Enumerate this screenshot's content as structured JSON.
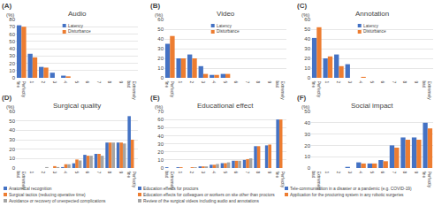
{
  "chart_data": [
    {
      "type": "bar",
      "title": "Audio",
      "annotations": [
        "(A)"
      ],
      "ylabel": "(%)",
      "categories": [
        "Perfectly\nfine",
        "1",
        "2",
        "3",
        "4",
        "5",
        "6",
        "7",
        "8",
        "9",
        "Extremely\nbad"
      ],
      "series": [
        {
          "name": "Latency",
          "color": "#4472c4",
          "values": [
            72,
            33,
            15,
            7,
            3,
            0,
            0,
            0,
            0,
            0,
            0
          ]
        },
        {
          "name": "Disturbance",
          "color": "#ed7d31",
          "values": [
            70,
            28,
            14,
            0,
            2,
            0,
            0,
            0,
            0,
            0,
            0
          ]
        }
      ],
      "ylim": [
        0,
        80
      ],
      "yticks": [
        0,
        10,
        20,
        30,
        40,
        50,
        60,
        70,
        80
      ],
      "grid": true,
      "legend": "upper center"
    },
    {
      "type": "bar",
      "title": "Video",
      "annotations": [
        "(B)"
      ],
      "ylabel": "(%)",
      "categories": [
        "Perfectly\nfine",
        "1",
        "2",
        "3",
        "4",
        "5",
        "6",
        "7",
        "8",
        "9",
        "Extremely\nbad"
      ],
      "series": [
        {
          "name": "Latency",
          "color": "#4472c4",
          "values": [
            35,
            20,
            24,
            12,
            3,
            4,
            0,
            0,
            0,
            0,
            0
          ]
        },
        {
          "name": "Disturbance",
          "color": "#ed7d31",
          "values": [
            43,
            20,
            20,
            4,
            3,
            4,
            0,
            0,
            0,
            0,
            0
          ]
        }
      ],
      "ylim": [
        0,
        60
      ],
      "yticks": [
        0,
        10,
        20,
        30,
        40,
        50,
        60
      ],
      "grid": true,
      "legend": "upper center"
    },
    {
      "type": "bar",
      "title": "Annotation",
      "annotations": [
        "(C)"
      ],
      "ylabel": "(%)",
      "categories": [
        "Perfectly\nfine",
        "1",
        "2",
        "3",
        "4",
        "5",
        "6",
        "7",
        "8",
        "9",
        "Extremely\nbad"
      ],
      "series": [
        {
          "name": "Latency",
          "color": "#4472c4",
          "values": [
            41,
            20,
            24,
            14,
            0,
            0,
            0,
            0,
            0,
            0,
            0
          ]
        },
        {
          "name": "Disturbance",
          "color": "#ed7d31",
          "values": [
            52,
            22,
            12,
            0,
            1,
            0,
            0,
            0,
            0,
            0,
            0
          ]
        }
      ],
      "ylim": [
        0,
        60
      ],
      "yticks": [
        0,
        10,
        20,
        30,
        40,
        50,
        60
      ],
      "grid": true,
      "legend": "upper center"
    },
    {
      "type": "bar",
      "title": "Surgical quality",
      "annotations": [
        "(D)"
      ],
      "ylabel": "(%)",
      "categories": [
        "Extremely\nbad",
        "1",
        "2",
        "3",
        "4",
        "5",
        "6",
        "7",
        "8",
        "9",
        "Perfectly\nfine"
      ],
      "series": [
        {
          "name": "Anatomical recognition",
          "color": "#4472c4",
          "values": [
            0,
            0,
            0,
            0,
            1,
            5,
            14,
            15,
            27,
            27,
            55
          ]
        },
        {
          "name": "Surgical tactics (reducing operative time)",
          "color": "#ed7d31",
          "values": [
            0,
            0,
            0,
            2,
            4,
            9,
            13,
            15,
            27,
            27,
            30
          ]
        },
        {
          "name": "Avoidance or recovery of unexpected complications",
          "color": "#a5a5a5",
          "values": [
            0,
            0,
            1,
            1,
            4,
            8,
            13,
            13,
            27,
            26,
            0
          ]
        }
      ],
      "ylim": [
        0,
        60
      ],
      "yticks": [
        0,
        10,
        20,
        30,
        40,
        50,
        60
      ],
      "grid": true,
      "legend": "below"
    },
    {
      "type": "bar",
      "title": "Educational effect",
      "annotations": [
        "(E)"
      ],
      "ylabel": "(%)",
      "categories": [
        "Extremely\nbad",
        "1",
        "2",
        "3",
        "4",
        "5",
        "6",
        "7",
        "8",
        "9",
        "Perfectly\nfine"
      ],
      "series": [
        {
          "name": "Education effects for proctors",
          "color": "#4472c4",
          "values": [
            1,
            1,
            0,
            2,
            4,
            6,
            9,
            10,
            27,
            28,
            60
          ]
        },
        {
          "name": "Education effects for colleagues or workers on site other than proctors",
          "color": "#ed7d31",
          "values": [
            0,
            1,
            1,
            2,
            4,
            6,
            9,
            11,
            27,
            29,
            60
          ]
        },
        {
          "name": "Review of the surgical videos including audio and annotations",
          "color": "#a5a5a5",
          "values": [
            0,
            0,
            1,
            2,
            5,
            7,
            9,
            12,
            0,
            0,
            0
          ]
        }
      ],
      "ylim": [
        0,
        70
      ],
      "yticks": [
        0,
        10,
        20,
        30,
        40,
        50,
        60,
        70
      ],
      "grid": true,
      "legend": "below"
    },
    {
      "type": "bar",
      "title": "Social impact",
      "annotations": [
        "(F)"
      ],
      "ylabel": "(%)",
      "categories": [
        "Extremely\nbad",
        "1",
        "2",
        "3",
        "4",
        "5",
        "6",
        "7",
        "8",
        "9",
        "Perfectly\nfine"
      ],
      "series": [
        {
          "name": "Tele-communication in a disaster or a pandemic (e.g. COVID-19)",
          "color": "#4472c4",
          "values": [
            0,
            0,
            0,
            1,
            5,
            4,
            7,
            20,
            27,
            27,
            40
          ]
        },
        {
          "name": "Application for the proctoring system in any robotic surgeries",
          "color": "#ed7d31",
          "values": [
            0,
            0,
            0,
            0,
            4,
            4,
            6,
            18,
            25,
            25,
            35
          ]
        }
      ],
      "ylim": [
        0,
        50
      ],
      "yticks": [
        0,
        10,
        20,
        30,
        40,
        50
      ],
      "grid": true,
      "legend": "below"
    }
  ]
}
